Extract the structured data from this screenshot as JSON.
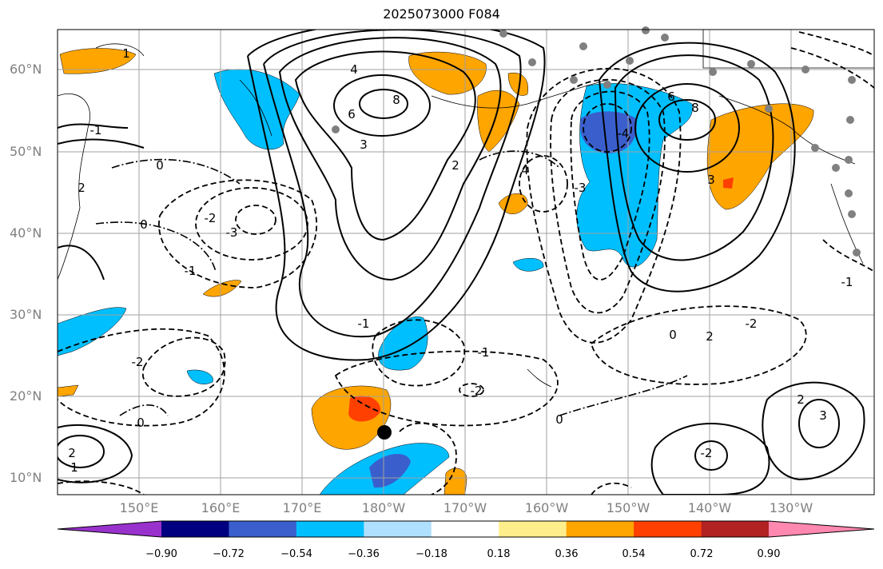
{
  "title": "2025073000 F084",
  "lat_labels": [
    "60°N",
    "50°N",
    "40°N",
    "30°N",
    "20°N",
    "10°N"
  ],
  "lon_labels": [
    "150°E",
    "160°E",
    "170°E",
    "180°W",
    "170°W",
    "160°W",
    "150°W",
    "140°W",
    "130°W"
  ],
  "contour_labels": [
    {
      "text": "4"
    },
    {
      "text": "8"
    },
    {
      "text": "6"
    },
    {
      "text": "3"
    },
    {
      "text": "2"
    },
    {
      "text": "1"
    },
    {
      "text": "0"
    },
    {
      "text": "-2"
    },
    {
      "text": "-3"
    },
    {
      "text": "-1"
    },
    {
      "text": "4"
    },
    {
      "text": "6"
    },
    {
      "text": "8"
    },
    {
      "text": "0"
    },
    {
      "text": "-3"
    },
    {
      "text": "-4"
    },
    {
      "text": "-2"
    },
    {
      "text": "-1"
    },
    {
      "text": "0"
    },
    {
      "text": "-2"
    },
    {
      "text": "2"
    },
    {
      "text": "3"
    },
    {
      "text": "-1"
    },
    {
      "text": "2"
    },
    {
      "text": "-2"
    },
    {
      "text": "-1"
    },
    {
      "text": "0"
    },
    {
      "text": "2"
    },
    {
      "text": "3"
    },
    {
      "text": "2"
    },
    {
      "text": "1"
    },
    {
      "text": "0"
    },
    {
      "text": "-2"
    },
    {
      "text": "-1"
    }
  ],
  "colorbar": {
    "colors": [
      "#9932cc",
      "#000080",
      "#3a5fcd",
      "#00bfff",
      "#b0e0ff",
      "#ffffff",
      "#ffee8c",
      "#ffa500",
      "#ff4000",
      "#b22222",
      "#ff88b0"
    ],
    "labels": [
      "−0.90",
      "−0.72",
      "−0.54",
      "−0.36",
      "−0.18",
      "0.18",
      "0.36",
      "0.54",
      "0.72",
      "0.90"
    ]
  }
}
